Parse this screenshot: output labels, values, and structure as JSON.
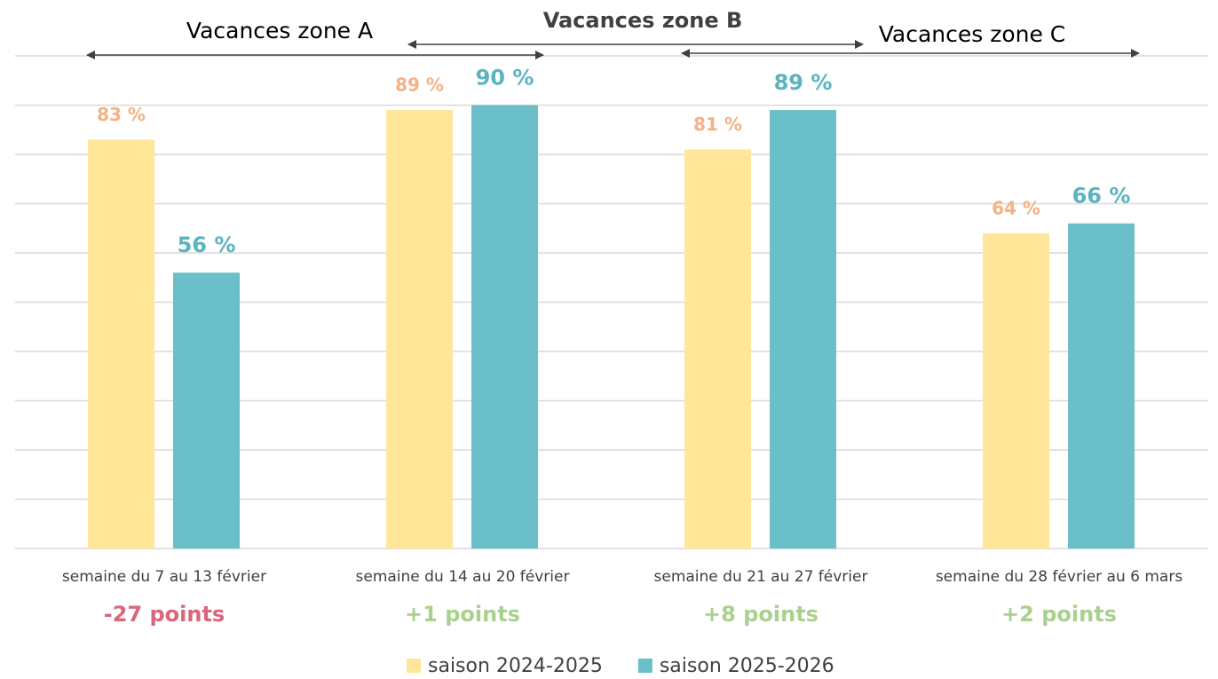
{
  "chart_data": {
    "type": "bar",
    "categories": [
      "semaine du 7 au 13 février",
      "semaine du 14 au 20 février",
      "semaine du 21 au 27 février",
      "semaine du 28 février au 6 mars"
    ],
    "series": [
      {
        "name": "saison 2024-2025",
        "color": "#FFE699",
        "label_color": "#F4B183",
        "values": [
          83,
          89,
          81,
          64
        ],
        "value_labels": [
          "83 %",
          "89 %",
          "81 %",
          "64 %"
        ]
      },
      {
        "name": "saison 2025-2026",
        "color": "#6BBFC8",
        "label_color": "#5BB4C0",
        "values": [
          56,
          90,
          89,
          66
        ],
        "value_labels": [
          "56 %",
          "90 %",
          "89 %",
          "66 %"
        ]
      }
    ],
    "ylim": [
      0,
      100
    ],
    "yticks": [
      0,
      10,
      20,
      30,
      40,
      50,
      60,
      70,
      80,
      90,
      100
    ],
    "grid": true,
    "legend": "bottom",
    "annotations": [
      {
        "text": "-27 points",
        "color": "#D9667A"
      },
      {
        "text": "+1 points",
        "color": "#A9D18E"
      },
      {
        "text": "+8 points",
        "color": "#A9D18E"
      },
      {
        "text": "+2 points",
        "color": "#A9D18E"
      }
    ],
    "zones": [
      "Vacances zone A",
      "Vacances zone B",
      "Vacances zone C"
    ]
  }
}
